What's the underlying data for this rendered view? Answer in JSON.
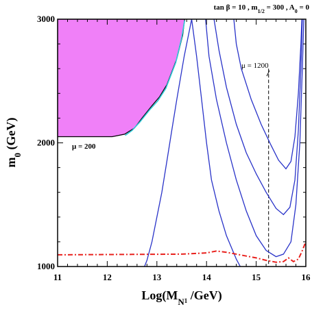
{
  "chart_data": {
    "type": "line",
    "title": "tan β = 10 , m",
    "title_sub": "1/2",
    "title_mid": " = 300 , A",
    "title_sub2": "0",
    "title_end": " = 0",
    "xlabel_main": "Log(M",
    "xlabel_sub": "N",
    "xlabel_subsub": "1",
    "xlabel_end": " /GeV)",
    "ylabel_main": "m",
    "ylabel_sub": "0",
    "ylabel_end": " (GeV)",
    "xlim": [
      11,
      16
    ],
    "ylim": [
      1000,
      3000
    ],
    "x_ticks": [
      "11",
      "12",
      "13",
      "14",
      "15",
      "16"
    ],
    "y_ticks": [
      "1000",
      "2000",
      "3000"
    ],
    "annotations": {
      "mu200": "μ = 200",
      "mu1200": "μ = 1200"
    },
    "colors": {
      "region": "#f080f8",
      "contour": "#2832c8",
      "cyan": "#30c8d8",
      "red": "#e8201c",
      "axis": "#000000"
    },
    "region": [
      [
        11.0,
        3000
      ],
      [
        13.56,
        3000
      ],
      [
        13.52,
        2870
      ],
      [
        13.4,
        2680
      ],
      [
        13.2,
        2470
      ],
      [
        13.05,
        2370
      ],
      [
        12.9,
        2300
      ],
      [
        12.7,
        2200
      ],
      [
        12.55,
        2120
      ],
      [
        12.35,
        2070
      ],
      [
        12.1,
        2050
      ],
      [
        11.0,
        2050
      ]
    ],
    "cyan_band": [
      [
        13.56,
        2990
      ],
      [
        13.5,
        2850
      ],
      [
        13.38,
        2650
      ],
      [
        13.18,
        2440
      ],
      [
        13.02,
        2340
      ],
      [
        12.86,
        2270
      ],
      [
        12.66,
        2170
      ],
      [
        12.5,
        2100
      ],
      [
        12.36,
        2060
      ]
    ],
    "series": [
      {
        "values": [
          [
            12.75,
            1000
          ],
          [
            12.8,
            1050
          ],
          [
            12.9,
            1200
          ],
          [
            13.0,
            1400
          ],
          [
            13.1,
            1600
          ],
          [
            13.2,
            1850
          ],
          [
            13.3,
            2100
          ],
          [
            13.4,
            2350
          ],
          [
            13.55,
            2700
          ],
          [
            13.7,
            3000
          ]
        ]
      },
      {
        "values": [
          [
            13.7,
            3000
          ],
          [
            13.8,
            2700
          ],
          [
            13.9,
            2350
          ],
          [
            14.0,
            2000
          ],
          [
            14.1,
            1700
          ],
          [
            14.25,
            1450
          ],
          [
            14.4,
            1250
          ],
          [
            14.6,
            1060
          ],
          [
            14.68,
            1000
          ]
        ]
      },
      {
        "values": [
          [
            14.55,
            3000
          ],
          [
            14.6,
            2800
          ],
          [
            14.7,
            2600
          ],
          [
            14.9,
            2350
          ],
          [
            15.1,
            2150
          ],
          [
            15.3,
            1980
          ],
          [
            15.45,
            1860
          ],
          [
            15.6,
            1790
          ],
          [
            15.7,
            1850
          ],
          [
            15.78,
            2050
          ],
          [
            15.85,
            2400
          ],
          [
            15.9,
            2800
          ],
          [
            15.92,
            3000
          ]
        ]
      },
      {
        "values": [
          [
            14.15,
            3000
          ],
          [
            14.25,
            2750
          ],
          [
            14.4,
            2450
          ],
          [
            14.6,
            2150
          ],
          [
            14.8,
            1920
          ],
          [
            15.0,
            1750
          ],
          [
            15.2,
            1600
          ],
          [
            15.4,
            1470
          ],
          [
            15.55,
            1420
          ],
          [
            15.68,
            1480
          ],
          [
            15.78,
            1700
          ],
          [
            15.85,
            2100
          ],
          [
            15.9,
            2600
          ],
          [
            15.93,
            3000
          ]
        ]
      },
      {
        "values": [
          [
            13.98,
            3000
          ],
          [
            14.05,
            2700
          ],
          [
            14.2,
            2350
          ],
          [
            14.4,
            2000
          ],
          [
            14.6,
            1700
          ],
          [
            14.8,
            1450
          ],
          [
            15.0,
            1250
          ],
          [
            15.2,
            1130
          ],
          [
            15.4,
            1080
          ],
          [
            15.55,
            1100
          ],
          [
            15.7,
            1200
          ],
          [
            15.8,
            1500
          ],
          [
            15.88,
            2000
          ],
          [
            15.93,
            2600
          ],
          [
            15.96,
            3000
          ]
        ]
      }
    ],
    "red_line": [
      [
        11.0,
        1095
      ],
      [
        12.5,
        1098
      ],
      [
        13.5,
        1100
      ],
      [
        14.0,
        1110
      ],
      [
        14.2,
        1125
      ],
      [
        14.4,
        1115
      ],
      [
        14.8,
        1085
      ],
      [
        15.0,
        1070
      ],
      [
        15.2,
        1050
      ],
      [
        15.4,
        1035
      ],
      [
        15.55,
        1040
      ],
      [
        15.65,
        1070
      ],
      [
        15.75,
        1040
      ],
      [
        15.85,
        1060
      ],
      [
        15.92,
        1120
      ],
      [
        16.0,
        1200
      ]
    ],
    "dashed_x": 15.25
  }
}
